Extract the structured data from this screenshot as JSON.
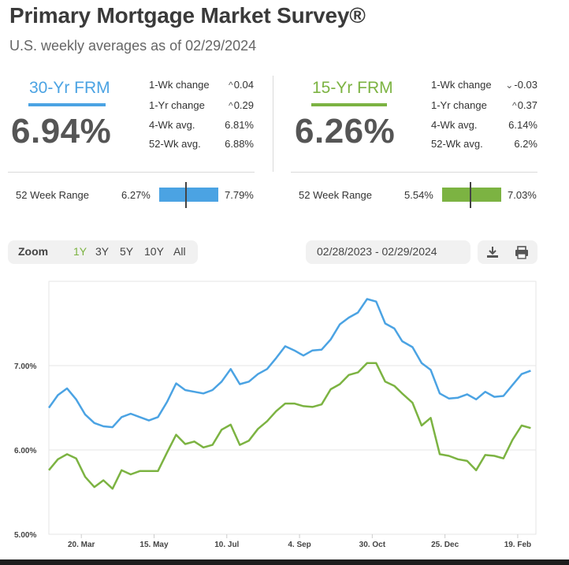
{
  "header": {
    "title": "Primary Mortgage Market Survey®",
    "subtitle": "U.S. weekly averages as of 02/29/2024"
  },
  "rates": [
    {
      "label": "30-Yr FRM",
      "rate": "6.94%",
      "color": "#4ba3e3",
      "stats": [
        {
          "label": "1-Wk change",
          "value": "0.04",
          "arrow": "up"
        },
        {
          "label": "1-Yr change",
          "value": "0.29",
          "arrow": "up"
        },
        {
          "label": "4-Wk avg.",
          "value": "6.81%"
        },
        {
          "label": "52-Wk avg.",
          "value": "6.88%"
        }
      ],
      "range": {
        "label": "52 Week Range",
        "low": "6.27%",
        "high": "7.79%",
        "current_fraction": 0.44
      }
    },
    {
      "label": "15-Yr FRM",
      "rate": "6.26%",
      "color": "#7cb342",
      "stats": [
        {
          "label": "1-Wk change",
          "value": "-0.03",
          "arrow": "down"
        },
        {
          "label": "1-Yr change",
          "value": "0.37",
          "arrow": "up"
        },
        {
          "label": "4-Wk avg.",
          "value": "6.14%"
        },
        {
          "label": "52-Wk avg.",
          "value": "6.2%"
        }
      ],
      "range": {
        "label": "52 Week Range",
        "low": "5.54%",
        "high": "7.03%",
        "current_fraction": 0.47
      }
    }
  ],
  "controls": {
    "zoom_label": "Zoom",
    "zoom_options": [
      "1Y",
      "3Y",
      "5Y",
      "10Y",
      "All"
    ],
    "zoom_selected": "1Y",
    "date_range": "02/28/2023 - 02/29/2024",
    "download_icon": "download-icon",
    "print_icon": "print-icon"
  },
  "chart_data": {
    "type": "line",
    "x": [
      "2023-02-23",
      "2023-03-02",
      "2023-03-09",
      "2023-03-16",
      "2023-03-23",
      "2023-03-30",
      "2023-04-06",
      "2023-04-13",
      "2023-04-20",
      "2023-04-27",
      "2023-05-04",
      "2023-05-11",
      "2023-05-18",
      "2023-05-25",
      "2023-06-01",
      "2023-06-08",
      "2023-06-15",
      "2023-06-22",
      "2023-06-29",
      "2023-07-06",
      "2023-07-13",
      "2023-07-20",
      "2023-07-27",
      "2023-08-03",
      "2023-08-10",
      "2023-08-17",
      "2023-08-24",
      "2023-08-31",
      "2023-09-07",
      "2023-09-14",
      "2023-09-21",
      "2023-09-28",
      "2023-10-05",
      "2023-10-12",
      "2023-10-19",
      "2023-10-26",
      "2023-11-02",
      "2023-11-09",
      "2023-11-16",
      "2023-11-22",
      "2023-11-30",
      "2023-12-07",
      "2023-12-14",
      "2023-12-21",
      "2023-12-28",
      "2024-01-04",
      "2024-01-11",
      "2024-01-18",
      "2024-01-25",
      "2024-02-01",
      "2024-02-08",
      "2024-02-15",
      "2024-02-22",
      "2024-02-29"
    ],
    "series": [
      {
        "name": "30-Yr FRM",
        "color": "#4ba3e3",
        "values": [
          6.5,
          6.65,
          6.73,
          6.6,
          6.42,
          6.32,
          6.28,
          6.27,
          6.39,
          6.43,
          6.39,
          6.35,
          6.39,
          6.57,
          6.79,
          6.71,
          6.69,
          6.67,
          6.71,
          6.81,
          6.96,
          6.78,
          6.81,
          6.9,
          6.96,
          7.09,
          7.23,
          7.18,
          7.12,
          7.18,
          7.19,
          7.31,
          7.49,
          7.57,
          7.63,
          7.79,
          7.76,
          7.5,
          7.44,
          7.29,
          7.22,
          7.03,
          6.95,
          6.67,
          6.61,
          6.62,
          6.66,
          6.6,
          6.69,
          6.63,
          6.64,
          6.77,
          6.9,
          6.94
        ]
      },
      {
        "name": "15-Yr FRM",
        "color": "#7cb342",
        "values": [
          5.76,
          5.89,
          5.95,
          5.9,
          5.68,
          5.56,
          5.64,
          5.54,
          5.76,
          5.71,
          5.75,
          5.75,
          5.75,
          5.97,
          6.18,
          6.07,
          6.1,
          6.03,
          6.06,
          6.24,
          6.3,
          6.06,
          6.11,
          6.25,
          6.34,
          6.46,
          6.55,
          6.55,
          6.52,
          6.51,
          6.54,
          6.72,
          6.78,
          6.89,
          6.92,
          7.03,
          7.03,
          6.81,
          6.76,
          6.67,
          6.56,
          6.29,
          6.38,
          5.95,
          5.93,
          5.89,
          5.87,
          5.76,
          5.94,
          5.93,
          5.9,
          6.12,
          6.29,
          6.26
        ]
      }
    ],
    "ylim": [
      5.0,
      8.0
    ],
    "yticks": [
      "5.00%",
      "6.00%",
      "7.00%"
    ],
    "ytick_values": [
      5.0,
      6.0,
      7.0
    ],
    "xticks": [
      "20. Mar",
      "15. May",
      "10. Jul",
      "4. Sep",
      "30. Oct",
      "25. Dec",
      "19. Feb"
    ],
    "xtick_dates": [
      "2023-03-20",
      "2023-05-15",
      "2023-07-10",
      "2023-09-04",
      "2023-10-30",
      "2023-12-25",
      "2024-02-19"
    ],
    "xlim": [
      "2023-02-23",
      "2024-03-04"
    ],
    "grid": true,
    "title": "",
    "xlabel": "",
    "ylabel": ""
  }
}
